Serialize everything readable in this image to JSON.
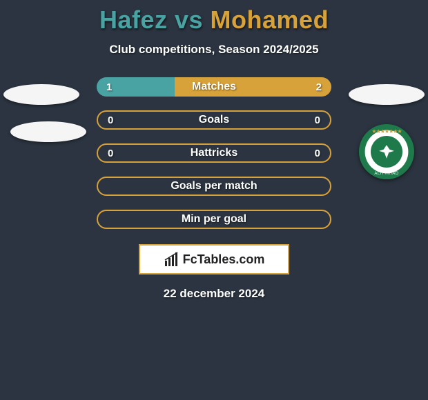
{
  "title": {
    "player1": "Hafez",
    "vs": "vs",
    "player2": "Mohamed",
    "player1_color": "#4aa3a3",
    "player2_color": "#d8a23a"
  },
  "subtitle": "Club competitions, Season 2024/2025",
  "rows": [
    {
      "label": "Matches",
      "left_value": "1",
      "right_value": "2",
      "left_pct": 33.3,
      "right_pct": 66.7,
      "left_color": "#4aa3a3",
      "right_color": "#d8a23a",
      "show_values": true
    },
    {
      "label": "Goals",
      "left_value": "0",
      "right_value": "0",
      "left_pct": 0,
      "right_pct": 0,
      "left_color": "#4aa3a3",
      "right_color": "#d8a23a",
      "show_values": true,
      "empty_border": "#d8a23a"
    },
    {
      "label": "Hattricks",
      "left_value": "0",
      "right_value": "0",
      "left_pct": 0,
      "right_pct": 0,
      "left_color": "#4aa3a3",
      "right_color": "#d8a23a",
      "show_values": true,
      "empty_border": "#d8a23a"
    },
    {
      "label": "Goals per match",
      "left_value": "",
      "right_value": "",
      "left_pct": 0,
      "right_pct": 0,
      "show_values": false,
      "empty_border": "#d8a23a"
    },
    {
      "label": "Min per goal",
      "left_value": "",
      "right_value": "",
      "left_pct": 0,
      "right_pct": 0,
      "show_values": false,
      "empty_border": "#d8a23a"
    }
  ],
  "badge": {
    "name": "ALITTIHAD",
    "sub": "ALEXANDRIA CLUB",
    "ring_color": "#1e7a4a",
    "center_color": "#1e7a4a",
    "star_color": "#d8a23a"
  },
  "brand": "FcTables.com",
  "date": "22 december 2024",
  "colors": {
    "background": "#2b3440",
    "pill_bg": "#3a434f",
    "text": "#ffffff"
  }
}
